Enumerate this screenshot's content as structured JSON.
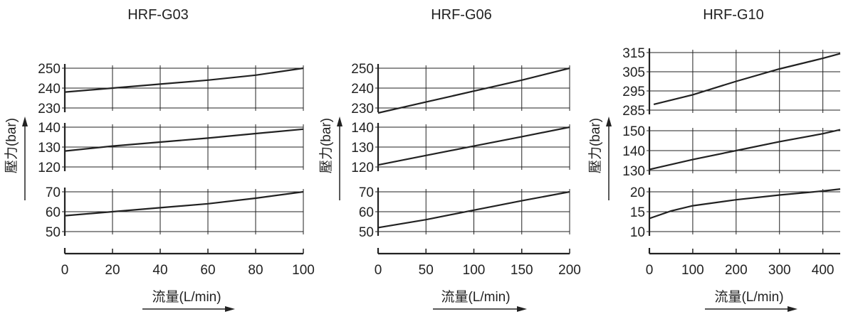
{
  "colors": {
    "ink": "#222222",
    "background": "#ffffff"
  },
  "chart_data": [
    {
      "type": "line",
      "title": "HRF-G03",
      "xlabel": "流量(L/min)",
      "ylabel": "壓力(bar)",
      "x_ticks": [
        "0",
        "20",
        "40",
        "60",
        "80",
        "100"
      ],
      "xlim": [
        0,
        100
      ],
      "grid": true,
      "panels": [
        {
          "ylim": [
            230,
            250
          ],
          "y_ticks": [
            "250",
            "240",
            "230"
          ],
          "series": [
            {
              "x": [
                0,
                20,
                40,
                60,
                80,
                100
              ],
              "values": [
                238,
                240,
                242,
                244,
                246.5,
                250
              ]
            }
          ]
        },
        {
          "ylim": [
            120,
            140
          ],
          "y_ticks": [
            "140",
            "130",
            "120"
          ],
          "series": [
            {
              "x": [
                0,
                20,
                40,
                60,
                80,
                100
              ],
              "values": [
                128,
                130.5,
                132.5,
                134.5,
                136.8,
                139
              ]
            }
          ]
        },
        {
          "ylim": [
            50,
            70
          ],
          "y_ticks": [
            "70",
            "60",
            "50"
          ],
          "series": [
            {
              "x": [
                0,
                20,
                40,
                60,
                80,
                100
              ],
              "values": [
                58,
                60,
                62,
                64,
                66.8,
                70
              ]
            }
          ]
        }
      ]
    },
    {
      "type": "line",
      "title": "HRF-G06",
      "xlabel": "流量(L/min)",
      "ylabel": "壓力(bar)",
      "x_ticks": [
        "0",
        "50",
        "100",
        "150",
        "200"
      ],
      "xlim": [
        0,
        200
      ],
      "grid": true,
      "panels": [
        {
          "ylim": [
            230,
            250
          ],
          "y_ticks": [
            "250",
            "240",
            "230"
          ],
          "series": [
            {
              "x": [
                0,
                50,
                100,
                150,
                200
              ],
              "values": [
                227.5,
                233,
                238.5,
                244,
                250
              ]
            }
          ]
        },
        {
          "ylim": [
            120,
            140
          ],
          "y_ticks": [
            "140",
            "130",
            "120"
          ],
          "series": [
            {
              "x": [
                0,
                50,
                100,
                150,
                200
              ],
              "values": [
                121,
                125.8,
                130.5,
                135.2,
                140
              ]
            }
          ]
        },
        {
          "ylim": [
            50,
            70
          ],
          "y_ticks": [
            "70",
            "60",
            "50"
          ],
          "series": [
            {
              "x": [
                0,
                50,
                100,
                150,
                200
              ],
              "values": [
                52,
                56,
                60.8,
                65.5,
                70
              ]
            }
          ]
        }
      ]
    },
    {
      "type": "line",
      "title": "HRF-G10",
      "xlabel": "流量(L/min)",
      "ylabel": "壓力(bar)",
      "x_ticks": [
        "0",
        "100",
        "200",
        "300",
        "400"
      ],
      "xlim": [
        0,
        440
      ],
      "grid": true,
      "panels": [
        {
          "ylim": [
            285,
            315
          ],
          "y_ticks": [
            "315",
            "305",
            "295",
            "285"
          ],
          "series": [
            {
              "x": [
                10,
                100,
                200,
                300,
                400,
                440
              ],
              "values": [
                288,
                293,
                300,
                306.5,
                312,
                314.5
              ]
            }
          ]
        },
        {
          "ylim": [
            130,
            150
          ],
          "y_ticks": [
            "150",
            "140",
            "130"
          ],
          "series": [
            {
              "x": [
                0,
                100,
                200,
                300,
                400,
                440
              ],
              "values": [
                130.5,
                135.5,
                140,
                144.5,
                148.5,
                150.5
              ]
            }
          ]
        },
        {
          "ylim": [
            10,
            20
          ],
          "y_ticks": [
            "20",
            "15",
            "10"
          ],
          "series": [
            {
              "x": [
                0,
                50,
                100,
                200,
                300,
                400,
                440
              ],
              "values": [
                13.3,
                15.2,
                16.5,
                18,
                19.2,
                20.2,
                20.7
              ]
            }
          ]
        }
      ]
    }
  ]
}
